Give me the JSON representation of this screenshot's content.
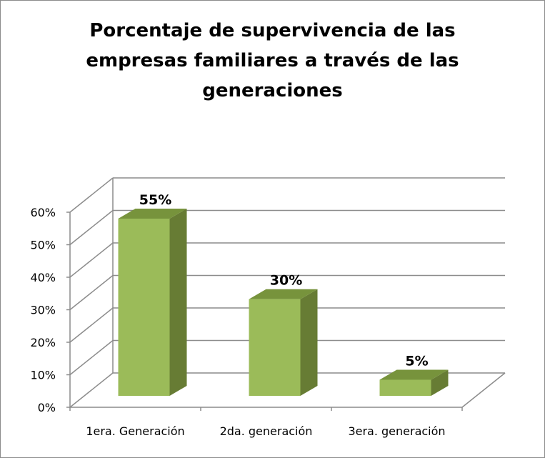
{
  "chart_data": {
    "type": "bar",
    "title": "Porcentaje de supervivencia de las\nempresas familiares a través de las\ngeneraciones",
    "categories": [
      "1era. Generación",
      "2da. generación",
      "3era. generación"
    ],
    "values": [
      55,
      30,
      5
    ],
    "data_labels": [
      "55%",
      "30%",
      "5%"
    ],
    "y_ticks": [
      "0%",
      "10%",
      "20%",
      "30%",
      "40%",
      "50%",
      "60%"
    ],
    "ylim": [
      0,
      60
    ],
    "xlabel": "",
    "ylabel": "",
    "grid": true,
    "legend": "none",
    "three_d": true
  },
  "colors": {
    "bar_front": "#9bbb59",
    "bar_top": "#77933c",
    "bar_side": "#677c34",
    "grid": "#8c8c8c"
  }
}
